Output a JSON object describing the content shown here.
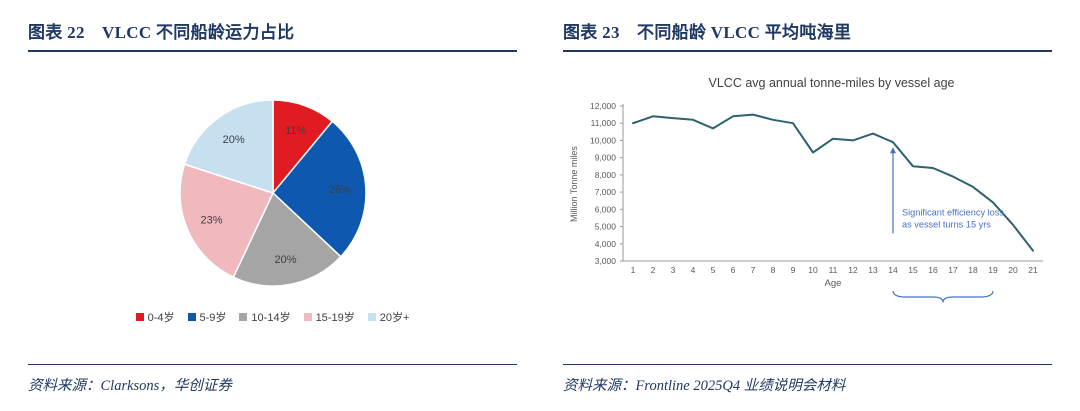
{
  "left_panel": {
    "title": "图表 22　VLCC 不同船龄运力占比",
    "source": "资料来源：Clarksons，华创证券"
  },
  "right_panel": {
    "title": "图表 23　不同船龄 VLCC 平均吨海里",
    "source": "资料来源：Frontline 2025Q4 业绩说明会材料"
  },
  "colors": {
    "heading_navy": "#1f3864",
    "axis_text": "#595959",
    "pie_label_text": "#3f3f3f",
    "line_series": "#2e6172",
    "annotation_blue": "#4472c4"
  },
  "chart_data": [
    {
      "type": "pie",
      "title": "VLCC 不同船龄运力占比",
      "labels": [
        "0-4岁",
        "5-9岁",
        "10-14岁",
        "15-19岁",
        "20岁+"
      ],
      "values": [
        11,
        26,
        20,
        23,
        20
      ],
      "data_labels": [
        "11%",
        "26%",
        "20%",
        "23%",
        "20%"
      ],
      "colors": [
        "#e01b22",
        "#0e58b0",
        "#a5a5a5",
        "#efb9be",
        "#c6e0f0"
      ],
      "legend_position": "bottom"
    },
    {
      "type": "line",
      "title": "VLCC avg annual tonne-miles by vessel age",
      "xlabel": "Age",
      "ylabel": "Million Tonne miles",
      "x": [
        1,
        2,
        3,
        4,
        5,
        6,
        7,
        8,
        9,
        10,
        11,
        12,
        13,
        14,
        15,
        16,
        17,
        18,
        19,
        20,
        21
      ],
      "values": [
        11000,
        11400,
        11300,
        11200,
        10700,
        11400,
        11500,
        11200,
        11000,
        9300,
        10100,
        10000,
        10400,
        9900,
        8500,
        8400,
        7900,
        7300,
        6400,
        5100,
        3600
      ],
      "ylim": [
        3000,
        12000
      ],
      "ytick_step": 1000,
      "grid": false,
      "legend_position": "none",
      "annotation": {
        "lines": [
          "Significant efficiency loss",
          "as vessel turns 15 yrs"
        ],
        "arrow_at_age": 14,
        "brace_age_range": [
          14,
          19
        ]
      }
    }
  ]
}
